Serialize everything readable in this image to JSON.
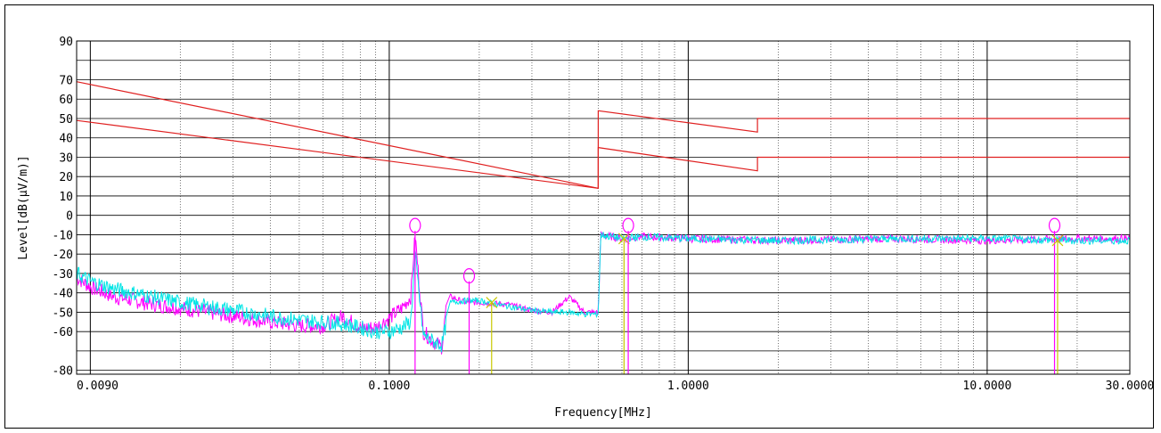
{
  "chart_data": {
    "type": "line",
    "title": "",
    "xlabel": "Frequency[MHz]",
    "ylabel": "Level[dB(µV/m)]",
    "xscale": "log",
    "xlim": [
      0.009,
      30.0
    ],
    "ylim": [
      -82,
      90
    ],
    "x_tick_labels": [
      {
        "value": 0.009,
        "label": "0.0090"
      },
      {
        "value": 0.1,
        "label": "0.1000"
      },
      {
        "value": 1.0,
        "label": "1.0000"
      },
      {
        "value": 10.0,
        "label": "10.0000"
      },
      {
        "value": 30.0,
        "label": "30.0000"
      }
    ],
    "y_ticks": [
      90,
      70,
      60,
      50,
      40,
      30,
      20,
      10,
      0,
      -10,
      -20,
      -30,
      -40,
      -50,
      -60,
      -80
    ],
    "grid": true,
    "colors": {
      "limit": "#e02020",
      "trace_a": "#ff00ff",
      "trace_b": "#00e5e5",
      "marker_peak": "#ff00ff",
      "marker_avg": "#c8c800"
    },
    "limit_lines": [
      {
        "x": [
          0.009,
          0.5,
          0.5,
          1.705,
          1.705,
          30.0
        ],
        "y": [
          69,
          14,
          54,
          43,
          50,
          50
        ]
      },
      {
        "x": [
          0.009,
          0.5,
          0.5,
          1.705,
          1.705,
          30.0
        ],
        "y": [
          49,
          14,
          35,
          23,
          30,
          30
        ]
      }
    ],
    "series": [
      {
        "x": [
          0.009,
          0.01,
          0.012,
          0.015,
          0.02,
          0.03,
          0.04,
          0.05,
          0.06,
          0.07,
          0.08,
          0.09,
          0.1,
          0.11,
          0.118,
          0.122,
          0.13,
          0.14,
          0.15,
          0.155,
          0.16,
          0.18,
          0.2,
          0.25,
          0.3,
          0.35,
          0.4,
          0.45,
          0.5,
          0.51,
          0.6,
          0.7,
          1.0,
          2.0,
          5.0,
          10.0,
          20.0,
          30.0
        ],
        "y": [
          -32,
          -37,
          -42,
          -45,
          -48,
          -52,
          -55,
          -57,
          -57,
          -52,
          -58,
          -58,
          -53,
          -48,
          -42,
          -10,
          -60,
          -65,
          -68,
          -48,
          -42,
          -45,
          -45,
          -46,
          -49,
          -50,
          -42,
          -50,
          -50,
          -10,
          -12,
          -11,
          -12,
          -13,
          -12,
          -13,
          -12,
          -12
        ]
      },
      {
        "x": [
          0.009,
          0.01,
          0.012,
          0.015,
          0.02,
          0.03,
          0.04,
          0.05,
          0.06,
          0.07,
          0.08,
          0.09,
          0.1,
          0.11,
          0.118,
          0.122,
          0.13,
          0.14,
          0.15,
          0.16,
          0.18,
          0.2,
          0.25,
          0.3,
          0.35,
          0.4,
          0.45,
          0.5,
          0.51,
          0.6,
          0.7,
          1.0,
          2.0,
          5.0,
          10.0,
          20.0,
          30.0
        ],
        "y": [
          -30,
          -34,
          -38,
          -41,
          -45,
          -49,
          -52,
          -54,
          -55,
          -56,
          -58,
          -60,
          -60,
          -58,
          -55,
          -20,
          -62,
          -65,
          -67,
          -45,
          -44,
          -44,
          -47,
          -49,
          -50,
          -50,
          -51,
          -51,
          -10,
          -12,
          -11,
          -12,
          -13,
          -12,
          -12,
          -13,
          -13
        ]
      }
    ],
    "markers": [
      {
        "x": 0.122,
        "y": -8,
        "type": "peak"
      },
      {
        "x": 0.185,
        "y": -34,
        "type": "peak"
      },
      {
        "x": 0.22,
        "y": -45,
        "type": "avg"
      },
      {
        "x": 0.61,
        "y": -12,
        "type": "avg"
      },
      {
        "x": 0.63,
        "y": -8,
        "type": "peak"
      },
      {
        "x": 16.8,
        "y": -8,
        "type": "peak"
      },
      {
        "x": 17.2,
        "y": -13,
        "type": "avg"
      }
    ]
  }
}
